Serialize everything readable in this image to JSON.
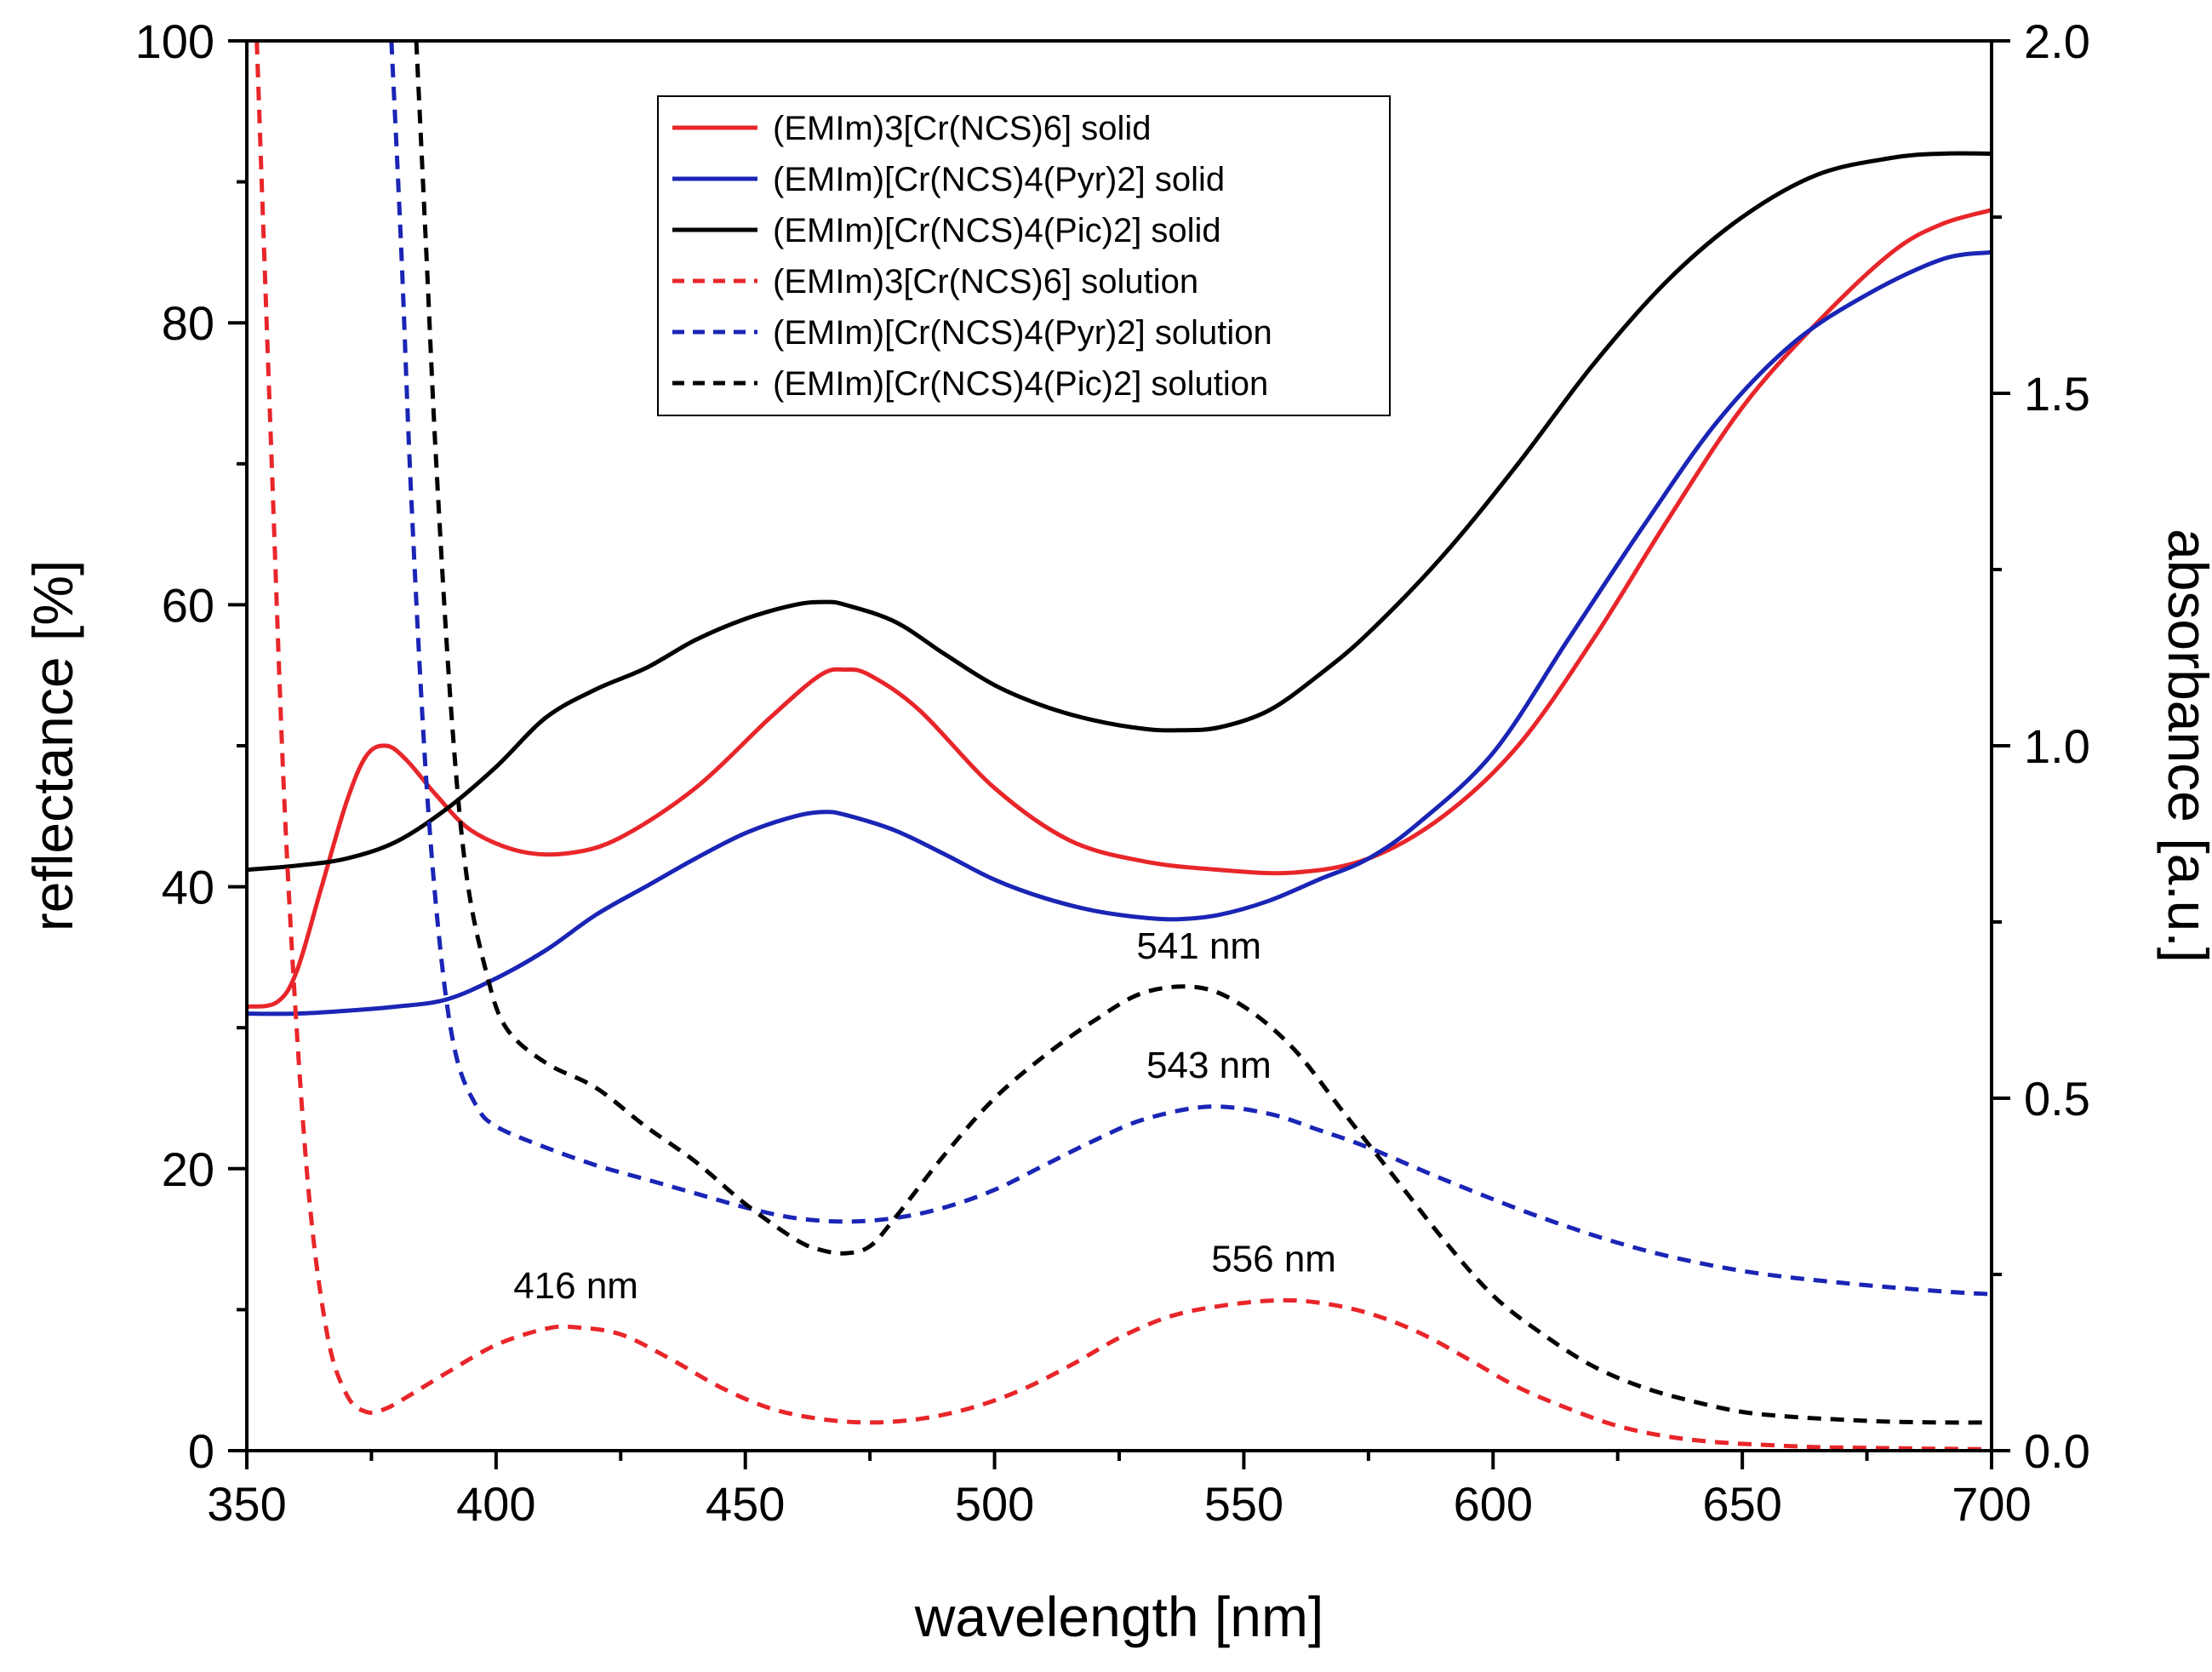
{
  "chart_data": {
    "type": "line",
    "title": "",
    "xlabel": "wavelength [nm]",
    "ylabel": "reflectance [%]",
    "y2label": "absorbance [a.u.]",
    "xlim": [
      350,
      700
    ],
    "ylim": [
      0,
      100
    ],
    "y2lim": [
      0.0,
      2.0
    ],
    "xticks": [
      "350",
      "400",
      "450",
      "500",
      "550",
      "600",
      "650",
      "700"
    ],
    "yticks": [
      "0",
      "20",
      "40",
      "60",
      "80",
      "100"
    ],
    "y2ticks": [
      "0.0",
      "0.5",
      "1.0",
      "1.5",
      "2.0"
    ],
    "grid": false,
    "legend_position": "top-center",
    "series": [
      {
        "name": "(EMIm)3[Cr(NCS)6] solid",
        "axis": "left",
        "color": "#e8262a",
        "dash": "solid",
        "x": [
          350,
          356,
          360,
          365,
          370,
          374,
          378,
          382,
          388,
          395,
          405,
          415,
          425,
          440,
          455,
          465,
          470,
          475,
          485,
          500,
          515,
          530,
          545,
          560,
          575,
          590,
          605,
          620,
          635,
          650,
          665,
          680,
          690,
          700
        ],
        "y": [
          31.5,
          31.8,
          34,
          40,
          46,
          49.3,
          50,
          49,
          46.5,
          44,
          42.5,
          42.4,
          43.5,
          47,
          52,
          55,
          55.4,
          55,
          52.5,
          47,
          43.3,
          41.8,
          41.2,
          41,
          42,
          45,
          50,
          57.5,
          66,
          74,
          80,
          85,
          87,
          88
        ]
      },
      {
        "name": "(EMIm)[Cr(NCS)4(Pyr)2] solid",
        "axis": "left",
        "color": "#1a25b5",
        "dash": "solid",
        "x": [
          350,
          360,
          370,
          380,
          390,
          400,
          410,
          420,
          430,
          440,
          450,
          460,
          466,
          470,
          480,
          490,
          500,
          510,
          520,
          530,
          537,
          545,
          555,
          565,
          575,
          585,
          600,
          615,
          630,
          645,
          660,
          675,
          690,
          700
        ],
        "y": [
          31,
          31,
          31.2,
          31.5,
          32,
          33.5,
          35.5,
          38,
          40,
          42,
          43.8,
          45,
          45.3,
          45.1,
          44,
          42.3,
          40.5,
          39.2,
          38.3,
          37.8,
          37.7,
          38,
          39,
          40.5,
          42,
          44.5,
          49.5,
          57.5,
          65.5,
          73,
          78.5,
          82,
          84.5,
          85
        ]
      },
      {
        "name": "(EMIm)[Cr(NCS)4(Pic)2] solid",
        "axis": "left",
        "color": "#000000",
        "dash": "solid",
        "x": [
          350,
          360,
          370,
          380,
          390,
          400,
          410,
          420,
          430,
          440,
          450,
          460,
          466,
          470,
          480,
          490,
          500,
          510,
          520,
          530,
          537,
          545,
          555,
          565,
          575,
          590,
          605,
          620,
          635,
          650,
          665,
          680,
          690,
          700
        ],
        "y": [
          41.2,
          41.5,
          42,
          43.2,
          45.5,
          48.5,
          52,
          54,
          55.5,
          57.5,
          59,
          60,
          60.2,
          60,
          58.8,
          56.5,
          54.3,
          52.8,
          51.8,
          51.2,
          51.1,
          51.3,
          52.5,
          55,
          58,
          63.5,
          70,
          77,
          83,
          87.5,
          90.5,
          91.7,
          92,
          92
        ]
      },
      {
        "name": "(EMIm)3[Cr(NCS)6] solution",
        "axis": "right",
        "color": "#e8262a",
        "dash": "dashed",
        "x": [
          352,
          355,
          358,
          362,
          366,
          370,
          374,
          378,
          383,
          390,
          400,
          410,
          416,
          425,
          435,
          445,
          455,
          465,
          475,
          485,
          495,
          505,
          515,
          525,
          535,
          545,
          556,
          565,
          575,
          585,
          595,
          605,
          615,
          625,
          635,
          645,
          655,
          665,
          675,
          685,
          700
        ],
        "y": [
          2.0,
          1.4,
          0.85,
          0.4,
          0.17,
          0.08,
          0.055,
          0.06,
          0.08,
          0.11,
          0.15,
          0.173,
          0.175,
          0.165,
          0.13,
          0.09,
          0.06,
          0.045,
          0.04,
          0.045,
          0.06,
          0.085,
          0.12,
          0.16,
          0.19,
          0.205,
          0.213,
          0.21,
          0.195,
          0.168,
          0.13,
          0.09,
          0.06,
          0.035,
          0.02,
          0.012,
          0.008,
          0.005,
          0.004,
          0.003,
          0.002
        ]
      },
      {
        "name": "(EMIm)[Cr(NCS)4(Pyr)2] solution",
        "axis": "right",
        "color": "#1a25b5",
        "dash": "dashed",
        "x": [
          379,
          381,
          383,
          386,
          389,
          392,
          396,
          400,
          410,
          420,
          430,
          440,
          450,
          460,
          470,
          480,
          490,
          500,
          510,
          520,
          530,
          543,
          555,
          565,
          575,
          590,
          610,
          630,
          650,
          670,
          690,
          700
        ],
        "y": [
          2.0,
          1.7,
          1.35,
          0.95,
          0.7,
          0.56,
          0.49,
          0.46,
          0.43,
          0.405,
          0.385,
          0.365,
          0.345,
          0.33,
          0.325,
          0.33,
          0.345,
          0.37,
          0.405,
          0.44,
          0.47,
          0.488,
          0.478,
          0.455,
          0.43,
          0.385,
          0.33,
          0.285,
          0.255,
          0.238,
          0.226,
          0.222
        ]
      },
      {
        "name": "(EMIm)[Cr(NCS)4(Pic)2] solution",
        "axis": "right",
        "color": "#000000",
        "dash": "dashed",
        "x": [
          384,
          386,
          388,
          391,
          394,
          398,
          402,
          410,
          420,
          430,
          440,
          450,
          460,
          465,
          470,
          475,
          480,
          490,
          500,
          510,
          520,
          530,
          541,
          550,
          560,
          570,
          580,
          590,
          600,
          610,
          620,
          630,
          640,
          650,
          660,
          670,
          680,
          690,
          700
        ],
        "y": [
          2.0,
          1.7,
          1.4,
          1.05,
          0.82,
          0.68,
          0.6,
          0.55,
          0.515,
          0.46,
          0.41,
          0.35,
          0.3,
          0.285,
          0.28,
          0.29,
          0.33,
          0.42,
          0.5,
          0.56,
          0.61,
          0.65,
          0.657,
          0.63,
          0.57,
          0.48,
          0.39,
          0.3,
          0.22,
          0.165,
          0.12,
          0.09,
          0.07,
          0.055,
          0.048,
          0.044,
          0.041,
          0.04,
          0.04
        ]
      }
    ],
    "annotations": [
      {
        "text": "416 nm",
        "x": 416,
        "y": 0.175,
        "axis": "right"
      },
      {
        "text": "556 nm",
        "x": 556,
        "y": 0.213,
        "axis": "right"
      },
      {
        "text": "541 nm",
        "x": 541,
        "y": 0.657,
        "axis": "right"
      },
      {
        "text": "543 nm",
        "x": 543,
        "y": 0.488,
        "axis": "right"
      }
    ]
  }
}
